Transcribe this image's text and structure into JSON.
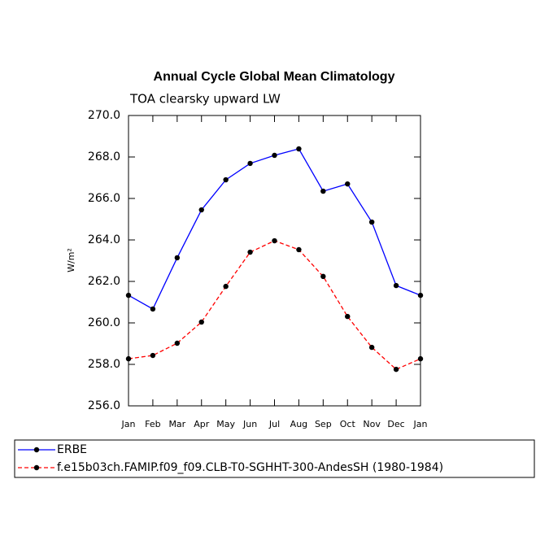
{
  "chart_data": {
    "type": "line",
    "title": "Annual Cycle Global Mean Climatology",
    "subtitle": "TOA clearsky upward LW",
    "y_label": "W/m²",
    "categories": [
      "Jan",
      "Feb",
      "Mar",
      "Apr",
      "May",
      "Jun",
      "Jul",
      "Aug",
      "Sep",
      "Oct",
      "Nov",
      "Dec",
      "Jan"
    ],
    "series": [
      {
        "name": "ERBE",
        "color": "#0000ff",
        "dash": false,
        "values": [
          261.33,
          260.67,
          263.14,
          265.45,
          266.9,
          267.69,
          268.08,
          268.39,
          266.35,
          266.7,
          264.86,
          261.8,
          261.33
        ]
      },
      {
        "name": "f.e15b03ch.FAMIP.f09_f09.CLB-T0-SGHHT-300-AndesSH (1980-1984)",
        "color": "#ff0000",
        "dash": true,
        "values": [
          258.27,
          258.43,
          259.02,
          260.04,
          261.76,
          263.41,
          263.96,
          263.53,
          262.24,
          260.31,
          258.82,
          257.76,
          258.27
        ]
      }
    ],
    "ylim": [
      256,
      270
    ],
    "yticks": [
      {
        "value": 256,
        "label": "256.0"
      },
      {
        "value": 258,
        "label": "258.0"
      },
      {
        "value": 260,
        "label": "260.0"
      },
      {
        "value": 262,
        "label": "262.0"
      },
      {
        "value": 264,
        "label": "264.0"
      },
      {
        "value": 266,
        "label": "266.0"
      },
      {
        "value": 268,
        "label": "268.0"
      },
      {
        "value": 270,
        "label": "270.0"
      }
    ]
  }
}
